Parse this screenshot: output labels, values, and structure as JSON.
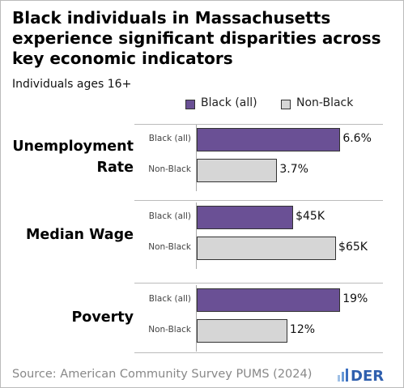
{
  "title": "Black individuals in Massachusetts experience significant disparities across key economic indicators",
  "subtitle": "Individuals ages 16+",
  "legend": [
    {
      "name": "Black (all)",
      "color": "#6a5095"
    },
    {
      "name": "Non-Black",
      "color": "#d6d6d6"
    }
  ],
  "source": "Source: American Community Survey PUMS (2024)",
  "logo": "DER",
  "chart_data": [
    {
      "type": "bar",
      "orientation": "horizontal",
      "title": "Unemployment Rate",
      "categories": [
        "Black (all)",
        "Non-Black"
      ],
      "values": [
        6.6,
        3.7
      ],
      "value_labels": [
        "6.6%",
        "3.7%"
      ],
      "xlim": [
        0,
        6.7
      ]
    },
    {
      "type": "bar",
      "orientation": "horizontal",
      "title": "Median Wage",
      "categories": [
        "Black (all)",
        "Non-Black"
      ],
      "values": [
        45000,
        65000
      ],
      "value_labels": [
        "$45K",
        "$65K"
      ],
      "xlim": [
        0,
        68000
      ]
    },
    {
      "type": "bar",
      "orientation": "horizontal",
      "title": "Poverty",
      "categories": [
        "Black (all)",
        "Non-Black"
      ],
      "values": [
        19,
        12
      ],
      "value_labels": [
        "19%",
        "12%"
      ],
      "xlim": [
        0,
        19.3
      ]
    }
  ]
}
